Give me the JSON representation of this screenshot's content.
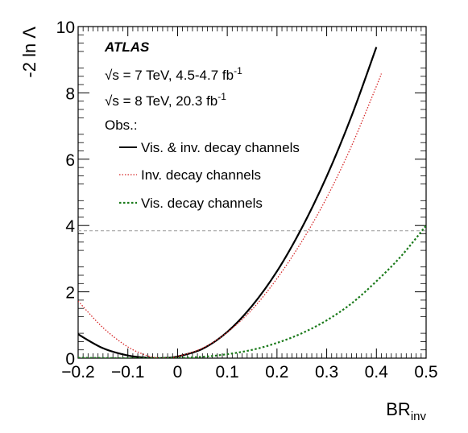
{
  "chart_data": {
    "type": "line",
    "xlim": [
      -0.2,
      0.5
    ],
    "ylim": [
      0,
      10
    ],
    "xticks": [
      "−0.2",
      "−0.1",
      "0",
      "0.1",
      "0.2",
      "0.3",
      "0.4",
      "0.5"
    ],
    "xtick_values": [
      -0.2,
      -0.1,
      0,
      0.1,
      0.2,
      0.3,
      0.4,
      0.5
    ],
    "yticks": [
      "0",
      "2",
      "4",
      "6",
      "8",
      "10"
    ],
    "ytick_values": [
      0,
      2,
      4,
      6,
      8,
      10
    ],
    "xlabel": "BR",
    "xlabel_sub": "inv",
    "ylabel": "-2 ln Λ",
    "grid": false,
    "reference_line": {
      "y": 3.84,
      "color": "#999999",
      "style": "dashed"
    },
    "annotations": {
      "experiment": "ATLAS",
      "line1_prefix": "√s",
      "line1_text": " = 7 TeV, 4.5-4.7 fb",
      "line1_sup": "-1",
      "line2_prefix": "√s",
      "line2_text": " = 8 TeV, 20.3 fb",
      "line2_sup": "-1",
      "obs": "Obs.:"
    },
    "legend_position": "top-left",
    "series": [
      {
        "name": "Vis. & inv. decay channels",
        "color": "#000000",
        "style": "solid",
        "x": [
          -0.2,
          -0.15,
          -0.1,
          -0.06,
          -0.04,
          -0.02,
          0.0,
          0.05,
          0.1,
          0.15,
          0.2,
          0.25,
          0.3,
          0.35,
          0.4
        ],
        "y": [
          0.72,
          0.3,
          0.08,
          0.01,
          0.0,
          0.01,
          0.05,
          0.28,
          0.79,
          1.58,
          2.62,
          3.93,
          5.48,
          7.3,
          9.38
        ]
      },
      {
        "name": "Inv. decay channels",
        "color": "#d62728",
        "style": "dotted",
        "x": [
          -0.2,
          -0.15,
          -0.1,
          -0.06,
          -0.04,
          -0.02,
          0.0,
          0.05,
          0.1,
          0.15,
          0.2,
          0.25,
          0.3,
          0.35,
          0.4,
          0.41
        ],
        "y": [
          1.72,
          0.92,
          0.34,
          0.07,
          0.01,
          0.0,
          0.05,
          0.3,
          0.78,
          1.47,
          2.4,
          3.52,
          4.84,
          6.4,
          8.2,
          8.58
        ]
      },
      {
        "name": "Vis. decay channels",
        "color": "#1a7a1a",
        "style": "dotted",
        "x": [
          -0.2,
          -0.1,
          -0.05,
          0.0,
          0.05,
          0.1,
          0.15,
          0.2,
          0.25,
          0.3,
          0.35,
          0.4,
          0.45,
          0.5
        ],
        "y": [
          0.01,
          0.0,
          0.0,
          0.01,
          0.04,
          0.12,
          0.25,
          0.46,
          0.75,
          1.14,
          1.65,
          2.32,
          3.08,
          4.0
        ]
      }
    ]
  }
}
